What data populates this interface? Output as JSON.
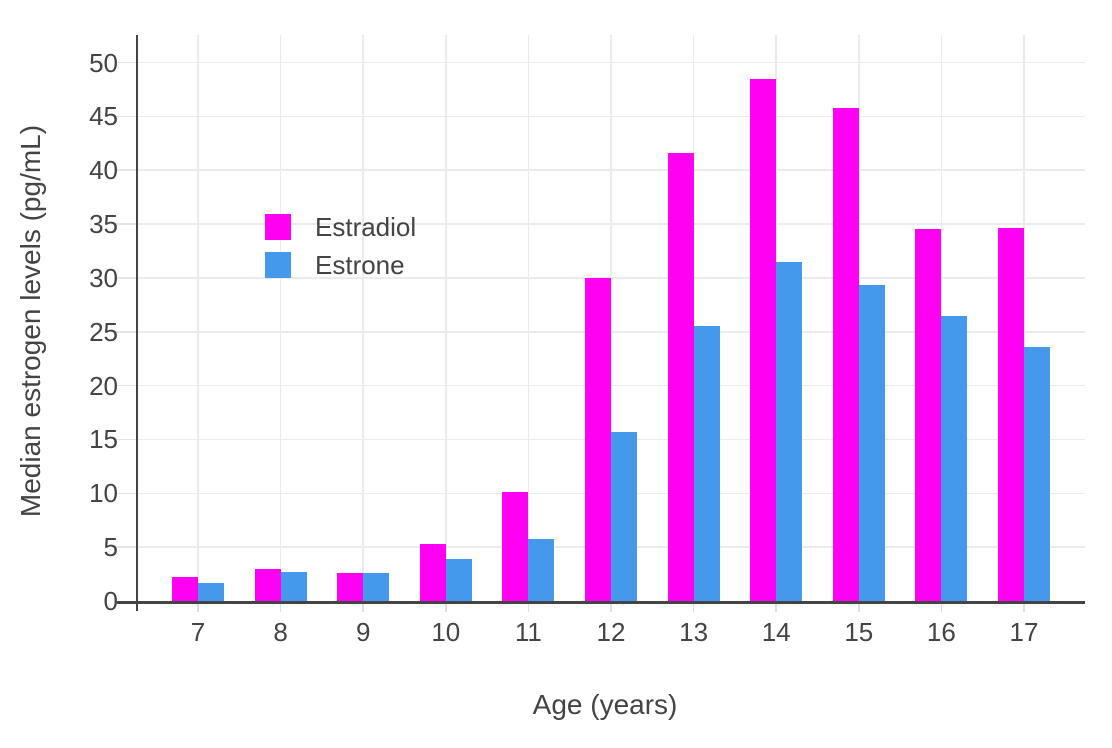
{
  "chart_data": {
    "type": "bar",
    "title": "",
    "xlabel": "Age (years)",
    "ylabel": "Median estrogen levels (pg/mL)",
    "categories": [
      "7",
      "8",
      "9",
      "10",
      "11",
      "12",
      "13",
      "14",
      "15",
      "16",
      "17"
    ],
    "series": [
      {
        "name": "Estradiol",
        "color": "#ff00f2",
        "values": [
          2.2,
          3.0,
          2.6,
          5.3,
          10.1,
          30.0,
          41.6,
          48.5,
          45.8,
          34.5,
          34.6
        ]
      },
      {
        "name": "Estrone",
        "color": "#4499ec",
        "values": [
          1.7,
          2.7,
          2.6,
          3.9,
          5.8,
          15.7,
          25.5,
          31.5,
          29.3,
          26.5,
          23.6
        ]
      }
    ],
    "yticks": [
      0,
      5,
      10,
      15,
      20,
      25,
      30,
      35,
      40,
      45,
      50
    ],
    "ylim": [
      0,
      52.5
    ],
    "grid": true,
    "legend_position": "inside-top-left",
    "colors": {
      "axis": "#444444",
      "text": "#444444",
      "gridline": "#ebebeb",
      "background": "#ffffff"
    }
  }
}
